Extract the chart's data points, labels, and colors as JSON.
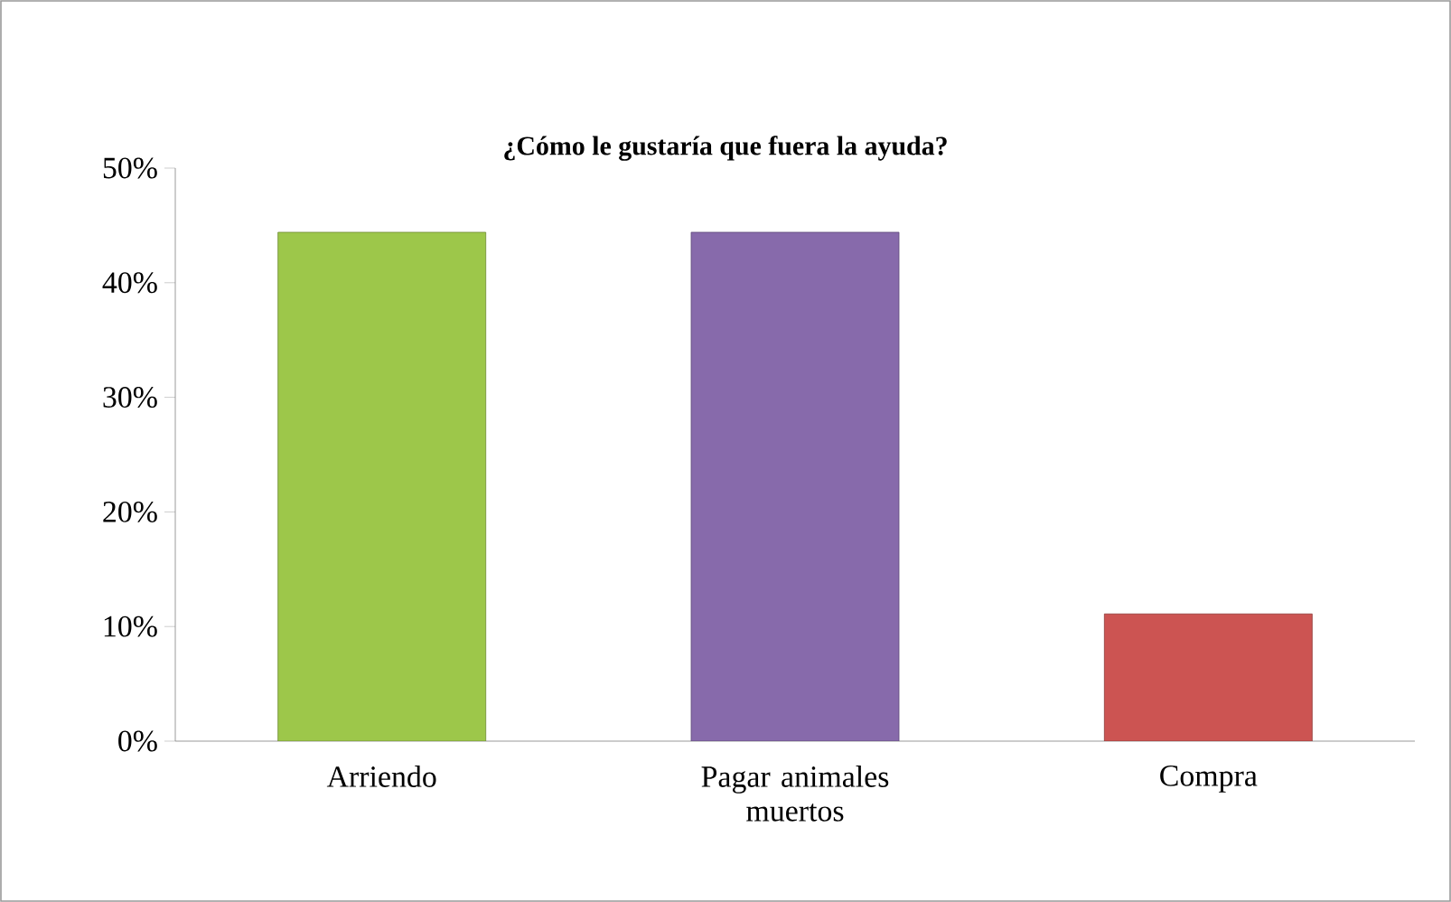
{
  "chart_data": {
    "type": "bar",
    "title": "¿Cómo le gustaría que fuera la ayuda?",
    "categories": [
      "Arriendo",
      "Pagar animales muertos",
      "Compra"
    ],
    "values": [
      44.4,
      44.4,
      11.1
    ],
    "colors": [
      "#9dc74a",
      "#876aab",
      "#cc5452"
    ],
    "ylim": [
      0,
      50
    ],
    "yticks": [
      {
        "value": 0,
        "label": "0%"
      },
      {
        "value": 10,
        "label": "10%"
      },
      {
        "value": 20,
        "label": "20%"
      },
      {
        "value": 30,
        "label": "30%"
      },
      {
        "value": 40,
        "label": "40%"
      },
      {
        "value": 50,
        "label": "50%"
      }
    ],
    "grid": false
  }
}
